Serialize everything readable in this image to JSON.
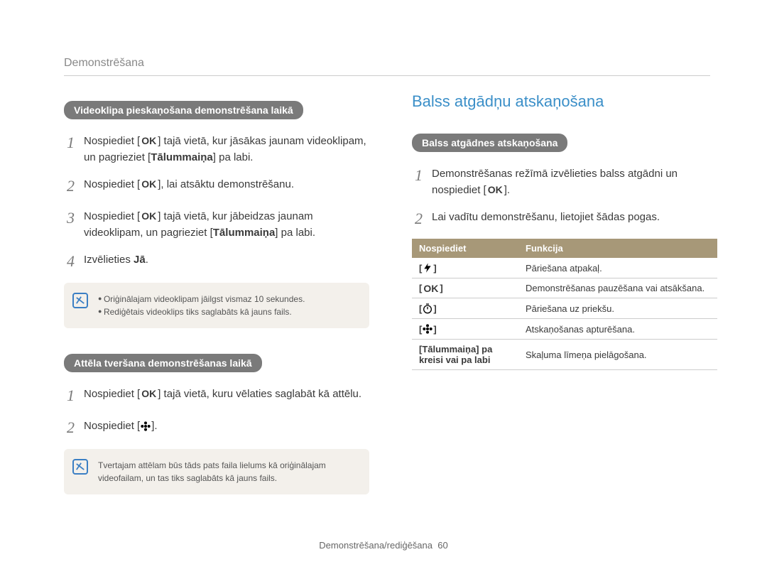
{
  "breadcrumb": "Demonstrēšana",
  "left": {
    "pill1": "Videoklipa pieskaņošana demonstrēšana laikā",
    "steps1": [
      {
        "n": "1",
        "pre": "Nospiediet [",
        "mid": "] tajā vietā, kur jāsākas jaunam videoklipam, un pagrieziet [",
        "bold": "Tālummaiņa",
        "post": "] pa labi."
      },
      {
        "n": "2",
        "pre": "Nospiediet [",
        "mid": "], lai atsāktu demonstrēšanu.",
        "bold": "",
        "post": ""
      },
      {
        "n": "3",
        "pre": "Nospiediet [",
        "mid": "] tajā vietā, kur jābeidzas jaunam videoklipam, un pagrieziet [",
        "bold": "Tālummaiņa",
        "post": "] pa labi."
      },
      {
        "n": "4",
        "plain_pre": "Izvēlieties ",
        "plain_bold": "Jā",
        "plain_post": "."
      }
    ],
    "note1": [
      "Oriģinālajam videoklipam jāilgst vismaz 10 sekundes.",
      "Rediģētais videoklips tiks saglabāts kā jauns fails."
    ],
    "pill2": "Attēla tveršana demonstrēšanas laikā",
    "steps2": [
      {
        "n": "1",
        "pre": "Nospiediet [",
        "mid": "] tajā vietā, kuru vēlaties saglabāt kā attēlu.",
        "bold": "",
        "post": ""
      },
      {
        "n": "2",
        "pre": "Nospiediet [",
        "icon": "flower",
        "post": "]."
      }
    ],
    "note2": "Tvertajam attēlam būs tāds pats faila lielums kā oriģinālajam videofailam, un tas tiks saglabāts kā jauns fails."
  },
  "right": {
    "title": "Balss atgādņu atskaņošana",
    "pill": "Balss atgādnes atskaņošana",
    "steps": [
      {
        "n": "1",
        "pre": "Demonstrēšanas režīmā izvēlieties balss atgādni un nospiediet [",
        "post": "]."
      },
      {
        "n": "2",
        "plain": "Lai vadītu demonstrēšanu, lietojiet šādas pogas."
      }
    ],
    "table": {
      "headers": [
        "Nospiediet",
        "Funkcija"
      ],
      "rows": [
        {
          "icon": "flash",
          "func": "Pāriešana atpakaļ."
        },
        {
          "icon": "ok",
          "func": "Demonstrēšanas pauzēšana vai atsākšana."
        },
        {
          "icon": "timer",
          "func": "Pāriešana uz priekšu."
        },
        {
          "icon": "flower",
          "func": "Atskaņošanas apturēšana."
        },
        {
          "label": "[Tālummaiņa] pa kreisi vai pa labi",
          "func": "Skaļuma līmeņa pielāgošana."
        }
      ]
    }
  },
  "footer": {
    "text": "Demonstrēšana/rediģēšana",
    "page": "60"
  }
}
